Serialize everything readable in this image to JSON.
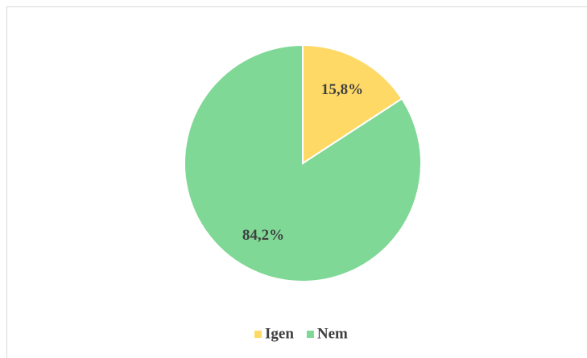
{
  "chart_data": {
    "type": "pie",
    "categories": [
      "Igen",
      "Nem"
    ],
    "values": [
      15.8,
      84.2
    ],
    "value_labels": [
      "15,8%",
      "84,2%"
    ],
    "colors": [
      "#ffd966",
      "#7fd895"
    ],
    "legend": "bottom"
  }
}
